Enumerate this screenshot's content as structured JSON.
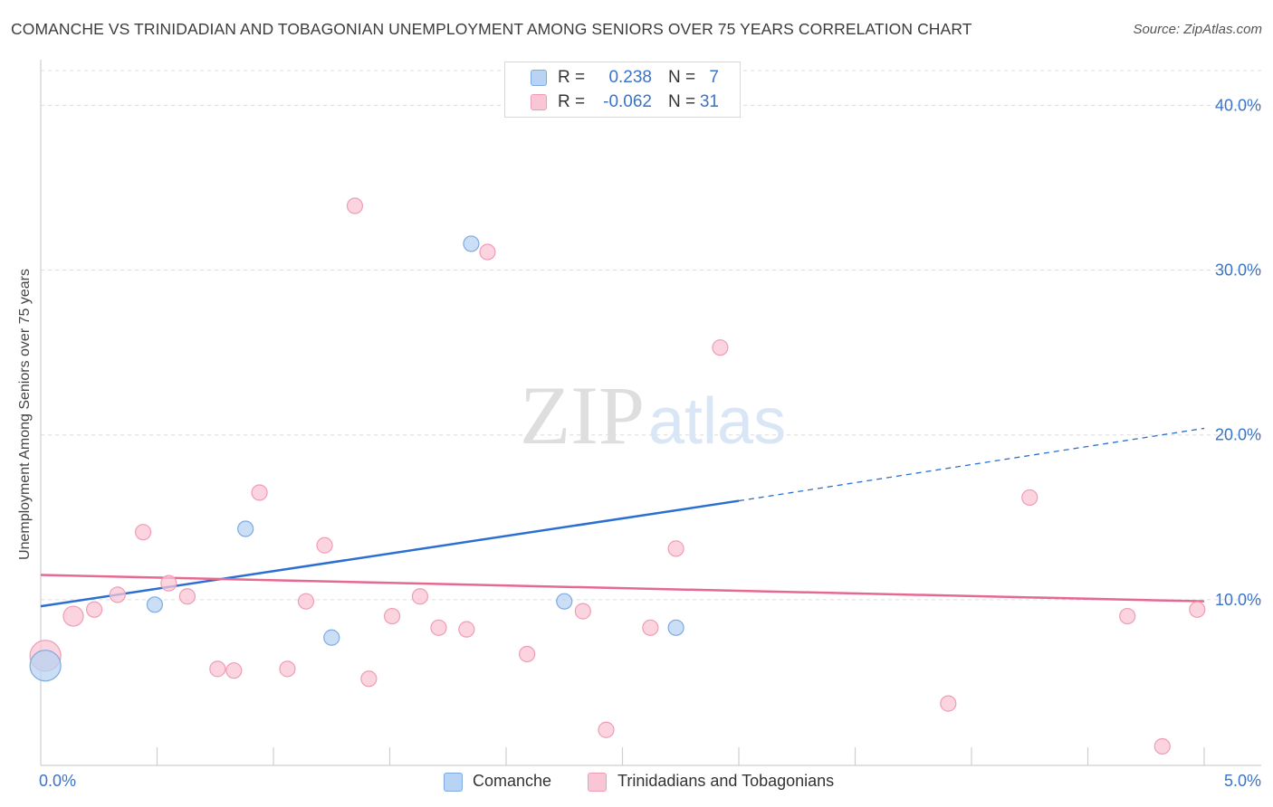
{
  "chart_data": {
    "type": "scatter",
    "title": "COMANCHE VS TRINIDADIAN AND TOBAGONIAN UNEMPLOYMENT AMONG SENIORS OVER 75 YEARS CORRELATION CHART",
    "source": "Source: ZipAtlas.com",
    "xlabel": "",
    "ylabel": "Unemployment Among Seniors over 75 years",
    "xlim": [
      0,
      5
    ],
    "ylim": [
      0,
      42
    ],
    "x_tick_labels": {
      "left": "0.0%",
      "right": "5.0%"
    },
    "y_ticks": [
      {
        "value": 10,
        "label": "10.0%"
      },
      {
        "value": 20,
        "label": "20.0%"
      },
      {
        "value": 30,
        "label": "30.0%"
      },
      {
        "value": 40,
        "label": "40.0%"
      }
    ],
    "grid": true,
    "watermark": {
      "zip": "ZIP",
      "atlas": "atlas"
    },
    "legend_stats": [
      {
        "r_label": "R =",
        "r_value": "0.238",
        "n_label": "N =",
        "n_value": "7"
      },
      {
        "r_label": "R =",
        "r_value": "-0.062",
        "n_label": "N =",
        "n_value": "31"
      }
    ],
    "series": [
      {
        "name": "Comanche",
        "fill": "#b8d3f3",
        "stroke": "#7faadf",
        "line_color": "#2a6fd1",
        "trend": {
          "x0": 0.0,
          "y0": 9.6,
          "x1": 3.0,
          "y1": 16.0,
          "dash_to_x": 5.0,
          "dash_to_y": 20.4
        },
        "points": [
          {
            "x": 0.02,
            "y": 6.0,
            "size": "large"
          },
          {
            "x": 0.49,
            "y": 9.7
          },
          {
            "x": 0.88,
            "y": 14.3
          },
          {
            "x": 1.25,
            "y": 7.7
          },
          {
            "x": 1.85,
            "y": 31.6
          },
          {
            "x": 2.25,
            "y": 9.9
          },
          {
            "x": 2.73,
            "y": 8.3
          }
        ]
      },
      {
        "name": "Trinidadians and Tobagonians",
        "fill": "#f9c6d5",
        "stroke": "#ef9db5",
        "line_color": "#e56a90",
        "trend": {
          "x0": 0.0,
          "y0": 11.5,
          "x1": 5.0,
          "y1": 9.9
        },
        "points": [
          {
            "x": 0.02,
            "y": 6.6,
            "size": "large"
          },
          {
            "x": 0.14,
            "y": 9.0,
            "size": "medium"
          },
          {
            "x": 0.23,
            "y": 9.4
          },
          {
            "x": 0.33,
            "y": 10.3
          },
          {
            "x": 0.44,
            "y": 14.1
          },
          {
            "x": 0.55,
            "y": 11.0
          },
          {
            "x": 0.63,
            "y": 10.2
          },
          {
            "x": 0.76,
            "y": 5.8
          },
          {
            "x": 0.83,
            "y": 5.7
          },
          {
            "x": 0.94,
            "y": 16.5
          },
          {
            "x": 1.06,
            "y": 5.8
          },
          {
            "x": 1.14,
            "y": 9.9
          },
          {
            "x": 1.22,
            "y": 13.3
          },
          {
            "x": 1.35,
            "y": 33.9
          },
          {
            "x": 1.41,
            "y": 5.2
          },
          {
            "x": 1.51,
            "y": 9.0
          },
          {
            "x": 1.63,
            "y": 10.2
          },
          {
            "x": 1.71,
            "y": 8.3
          },
          {
            "x": 1.83,
            "y": 8.2
          },
          {
            "x": 1.92,
            "y": 31.1
          },
          {
            "x": 2.09,
            "y": 6.7
          },
          {
            "x": 2.33,
            "y": 9.3
          },
          {
            "x": 2.43,
            "y": 2.1
          },
          {
            "x": 2.62,
            "y": 8.3
          },
          {
            "x": 2.73,
            "y": 13.1
          },
          {
            "x": 2.92,
            "y": 25.3
          },
          {
            "x": 3.9,
            "y": 3.7
          },
          {
            "x": 4.25,
            "y": 16.2
          },
          {
            "x": 4.67,
            "y": 9.0
          },
          {
            "x": 4.82,
            "y": 1.1
          },
          {
            "x": 4.97,
            "y": 9.4
          }
        ]
      }
    ]
  }
}
